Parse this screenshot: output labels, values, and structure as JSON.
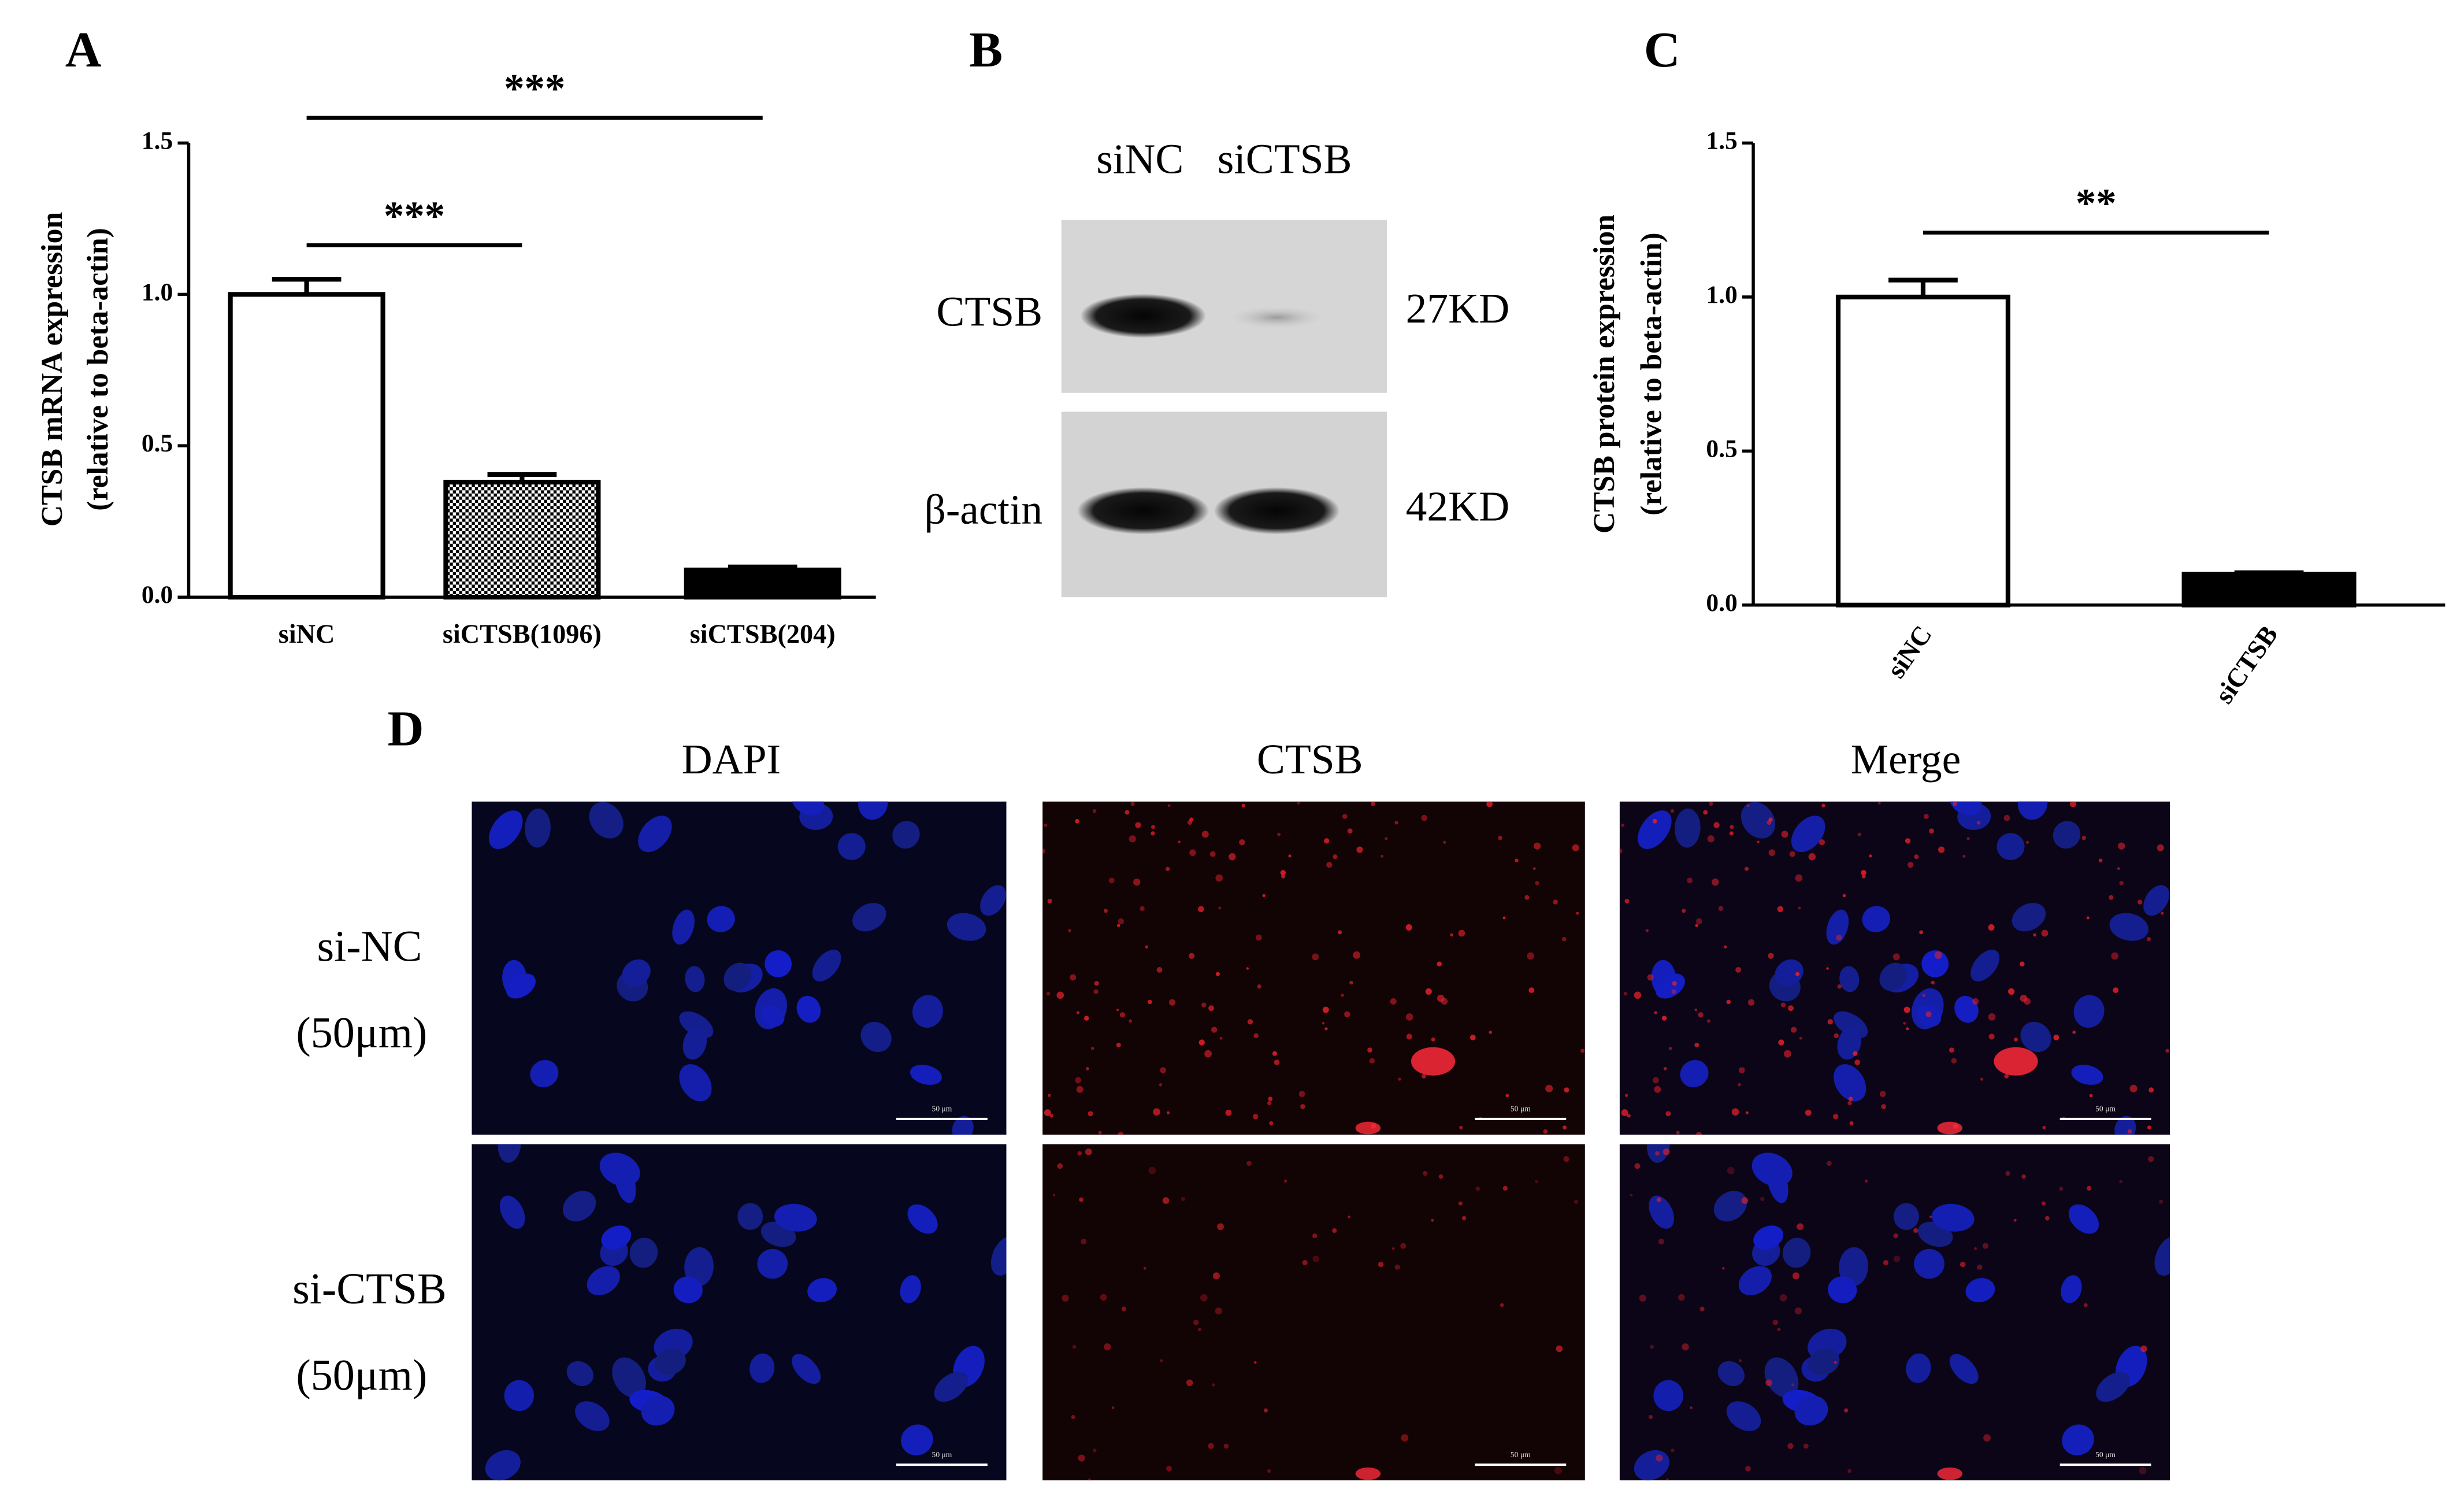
{
  "chart_data": [
    {
      "type": "bar",
      "panel": "A",
      "ylabel": [
        "CTSB mRNA expression",
        "(relative to beta-actin)"
      ],
      "categories": [
        "siNC",
        "siCTSB(1096)",
        "siCTSB(204)"
      ],
      "values": [
        1.0,
        0.38,
        0.09
      ],
      "errors": [
        0.05,
        0.025,
        0.01
      ],
      "fills": [
        "white",
        "checker",
        "black"
      ],
      "ylim": [
        0,
        1.5
      ],
      "yticks": [
        {
          "value": 0,
          "label": "0.0"
        },
        0.5,
        {
          "value": 1,
          "label": "1.0"
        },
        1.5
      ],
      "annotations": [
        {
          "text": "***",
          "from": 0,
          "to": 2
        },
        {
          "text": "***",
          "from": 0,
          "to": 1
        }
      ]
    },
    {
      "type": "bar",
      "panel": "C",
      "ylabel": [
        "CTSB protein expression",
        "(relative to beta-actin)"
      ],
      "categories": [
        "siNC",
        "siCTSB"
      ],
      "values": [
        1.0,
        0.1
      ],
      "errors": [
        0.055,
        0.005
      ],
      "fills": [
        "white",
        "black"
      ],
      "ylim": [
        0,
        1.5
      ],
      "yticks": [
        {
          "value": 0,
          "label": "0.0"
        },
        0.5,
        {
          "value": 1,
          "label": "1.0"
        },
        1.5
      ],
      "annotations": [
        {
          "text": "**",
          "from": 0,
          "to": 1
        }
      ]
    }
  ],
  "panel_b": {
    "panel": "B",
    "lanes": [
      "siNC",
      "siCTSB"
    ],
    "rows": [
      {
        "label": "CTSB",
        "size": "27KD"
      },
      {
        "label": "β-actin",
        "size": "42KD"
      }
    ]
  },
  "panel_d": {
    "panel": "D",
    "columns": [
      "DAPI",
      "CTSB",
      "Merge"
    ],
    "rows": [
      {
        "label": "si-NC",
        "scale": "(50μm)"
      },
      {
        "label": "si-CTSB",
        "scale": "(50μm)"
      }
    ],
    "scale_bar": "50 μm"
  }
}
